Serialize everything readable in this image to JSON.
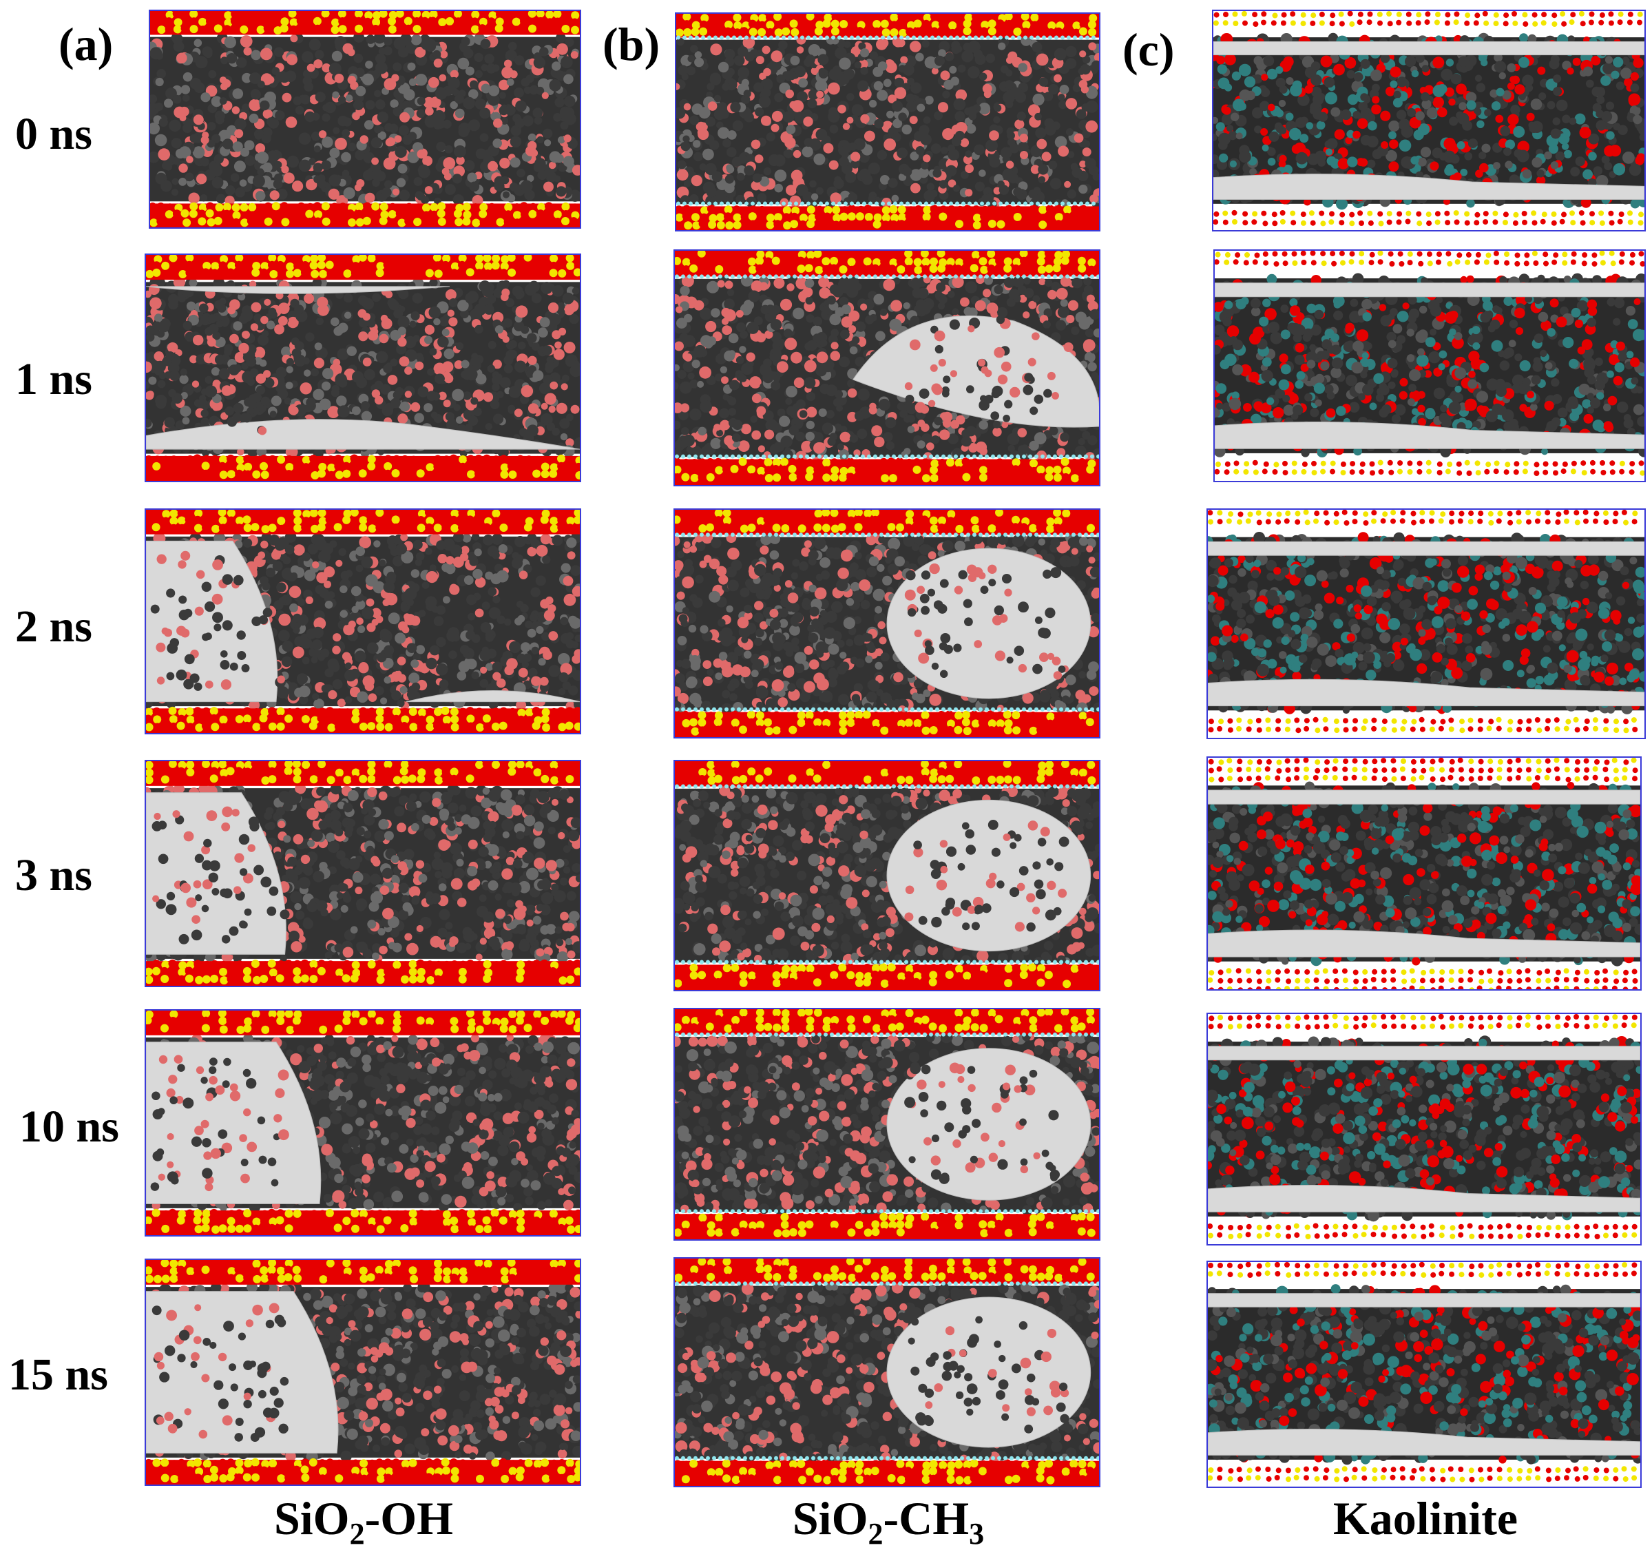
{
  "panels": [
    {
      "letter": "(a)",
      "title_main": "SiO",
      "title_sub": "2",
      "title_rest": "-OH",
      "kind": "oh"
    },
    {
      "letter": "(b)",
      "title_main": "SiO",
      "title_sub": "2",
      "title_rest": "-CH",
      "title_sub2": "3",
      "kind": "ch3"
    },
    {
      "letter": "(c)",
      "title_main": "Kaolinite",
      "title_sub": "",
      "title_rest": "",
      "kind": "kao"
    }
  ],
  "times": [
    "0 ns",
    "1 ns",
    "2 ns",
    "3 ns",
    "10 ns",
    "15 ns"
  ],
  "colors": {
    "oxygen": "#e60000",
    "silicon": "#f2e600",
    "water_background": "#d9d9d9",
    "oil_molecules": "#3a3a3a",
    "oil_oxygen": "#e06a6a",
    "carbon_teal": "#2f7f7f",
    "methyl_cyan": "#8fe6ef",
    "box_edge": "#3a3ad8"
  }
}
